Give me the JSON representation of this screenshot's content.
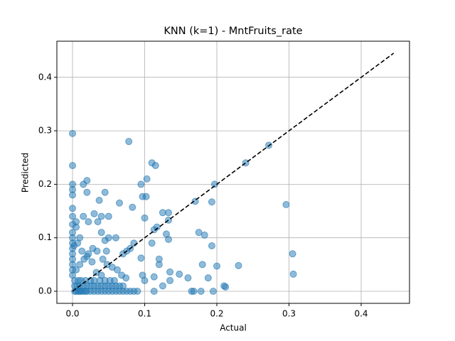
{
  "chart_data": {
    "type": "scatter",
    "title": "KNN (k=1) - MntFruits_rate",
    "x_label": "Actual",
    "y_label": "Predicted",
    "xlim": [
      -0.0217,
      0.467
    ],
    "ylim": [
      -0.0226,
      0.4675
    ],
    "xticks": [
      {
        "value": 0,
        "label": "0.0"
      },
      0.1,
      0.2,
      0.3,
      0.4
    ],
    "yticks": [
      {
        "value": 0,
        "label": "0.0"
      },
      0.1,
      0.2,
      0.3,
      0.4
    ],
    "grid": true,
    "series": [
      {
        "color": "#1f77b4",
        "x": [
          0,
          0,
          0,
          0,
          0,
          0.015,
          0.02,
          0.02,
          0.045,
          0.037,
          0.078,
          0.065,
          0.083,
          0.095,
          0.097,
          0.103,
          0.102,
          0.11,
          0.115,
          0.125,
          0.133,
          0.133,
          0.17,
          0.193,
          0.197,
          0.24,
          0.272,
          0.296,
          0.305,
          0.306,
          0.175,
          0.183,
          0.193,
          0.18,
          0.2,
          0.23,
          0.21,
          0.212,
          0.195,
          0.178,
          0.165,
          0.168,
          0.16,
          0.188,
          0.148,
          0.135,
          0.13,
          0.133,
          0.117,
          0.113,
          0.12,
          0.12,
          0.11,
          0.1,
          0.095,
          0.097,
          0.1,
          0.113,
          0.113,
          0.125,
          0.135,
          0.085,
          0.08,
          0.075,
          0.07,
          0.06,
          0.05,
          0.045,
          0.04,
          0.035,
          0.04,
          0.05,
          0.03,
          0.015,
          0.022,
          0.005,
          0,
          0,
          0.005,
          0.01,
          0,
          0,
          0,
          0,
          0,
          0,
          0,
          0,
          0,
          0,
          0.003,
          0.005,
          0.008,
          0.01,
          0.012,
          0.015,
          0.018,
          0.02,
          0.025,
          0.03,
          0.035,
          0.04,
          0.045,
          0.05,
          0.055,
          0.06,
          0.065,
          0.07,
          0.075,
          0.08,
          0.085,
          0.09,
          0.003,
          0.006,
          0.01,
          0.015,
          0.02,
          0.025,
          0.03,
          0.035,
          0.04,
          0.045,
          0.05,
          0.055,
          0.06,
          0.065,
          0.07,
          0.003,
          0.008,
          0.012,
          0.018,
          0.025,
          0.03,
          0.038,
          0.045,
          0.052,
          0.058,
          0.005,
          0.01,
          0.016,
          0.022,
          0.028,
          0.034,
          0.042,
          0.048,
          0.055,
          0.062,
          0.068,
          0.074,
          0.002,
          0.007,
          0.013,
          0.02,
          0.027,
          0.033,
          0.04,
          0.047
        ],
        "y": [
          0.295,
          0.235,
          0.2,
          0.19,
          0.18,
          0.2,
          0.207,
          0.185,
          0.185,
          0.17,
          0.28,
          0.165,
          0.157,
          0.2,
          0.177,
          0.21,
          0.177,
          0.24,
          0.235,
          0.147,
          0.147,
          0.133,
          0.168,
          0.167,
          0.2,
          0.24,
          0.273,
          0.162,
          0.07,
          0.032,
          0.11,
          0.105,
          0.085,
          0.05,
          0.047,
          0.048,
          0.01,
          0.008,
          0,
          0,
          0,
          0,
          0.025,
          0.025,
          0.032,
          0.036,
          0.107,
          0.097,
          0.12,
          0.115,
          0.06,
          0.05,
          0.09,
          0.137,
          0.062,
          0.03,
          0.02,
          0.027,
          0,
          0.01,
          0.02,
          0.09,
          0.08,
          0.075,
          0.07,
          0.1,
          0.1,
          0.095,
          0.11,
          0.13,
          0.14,
          0.14,
          0.145,
          0.14,
          0.13,
          0.13,
          0.155,
          0.14,
          0.12,
          0.1,
          0.125,
          0.11,
          0.1,
          0.09,
          0.08,
          0.07,
          0.06,
          0.05,
          0.04,
          0.03,
          0,
          0,
          0,
          0,
          0,
          0,
          0,
          0,
          0,
          0,
          0,
          0,
          0,
          0,
          0,
          0,
          0,
          0,
          0,
          0,
          0,
          0,
          0.01,
          0.01,
          0.01,
          0.01,
          0.01,
          0.01,
          0.01,
          0.01,
          0.01,
          0.01,
          0.01,
          0.01,
          0.01,
          0.01,
          0.01,
          0.02,
          0.02,
          0.02,
          0.02,
          0.02,
          0.02,
          0.02,
          0.02,
          0.02,
          0.02,
          0.04,
          0.05,
          0.06,
          0.07,
          0.08,
          0.075,
          0.06,
          0.05,
          0.045,
          0.04,
          0.03,
          0.025,
          0.085,
          0.09,
          0.075,
          0.065,
          0.055,
          0.035,
          0.03,
          0.075
        ]
      }
    ],
    "reference_line": {
      "x": [
        0,
        0.445
      ],
      "y": [
        0,
        0.445
      ],
      "color": "#000000",
      "style": "dashed"
    }
  }
}
